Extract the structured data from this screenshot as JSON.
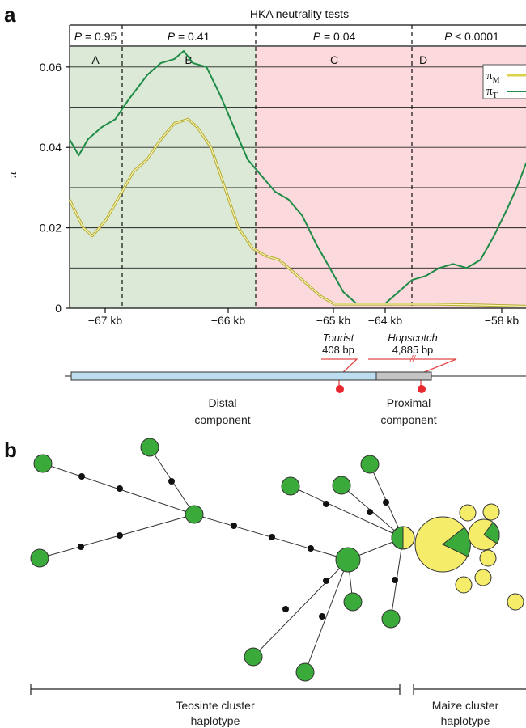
{
  "panel_a": {
    "letter": "a",
    "header_title": "HKA neutrality tests",
    "p_values": [
      {
        "label": "P = 0.95",
        "italic_part": "P",
        "rest": " = 0.95"
      },
      {
        "label": "P = 0.41",
        "italic_part": "P",
        "rest": " = 0.41"
      },
      {
        "label": "P = 0.04",
        "italic_part": "P",
        "rest": " = 0.04"
      },
      {
        "label": "P ≤ 0.0001",
        "italic_part": "P",
        "rest": " ≤ 0.0001"
      }
    ],
    "regions": [
      "A",
      "B",
      "C",
      "D"
    ],
    "region_colors": {
      "A": "#dbe9d6",
      "B": "#dbe9d6",
      "C": "#fbd9dc",
      "D": "#fbd9dc"
    },
    "legend": [
      {
        "symbol": "π",
        "sub": "M",
        "color": "#dcd24a"
      },
      {
        "symbol": "π",
        "sub": "T",
        "color": "#1e8c46"
      }
    ],
    "transposons": [
      {
        "name": "Tourist",
        "length": "408 bp"
      },
      {
        "name": "Hopscotch",
        "length": "4,885 bp"
      }
    ],
    "components": [
      {
        "line1": "Distal",
        "line2": "component"
      },
      {
        "line1": "Proximal",
        "line2": "component"
      }
    ]
  },
  "chart_data": {
    "type": "line",
    "title": "HKA neutrality tests",
    "xlabel": "",
    "ylabel": "π",
    "ylim": [
      0,
      0.065
    ],
    "y_ticks": [
      0,
      0.02,
      0.04,
      0.06
    ],
    "y_tick_labels": [
      "0",
      "0.02",
      "0.04",
      "0.06"
    ],
    "x_tick_labels": [
      "−67 kb",
      "−66 kb",
      "−65 kb",
      "−64 kb",
      "−58 kb"
    ],
    "grid": "horizontal",
    "region_boundaries_px_note": "",
    "series": [
      {
        "name": "πT",
        "color": "#1e8c46",
        "values": [
          [
            0.0,
            0.042
          ],
          [
            0.02,
            0.038
          ],
          [
            0.04,
            0.042
          ],
          [
            0.07,
            0.045
          ],
          [
            0.1,
            0.047
          ],
          [
            0.13,
            0.052
          ],
          [
            0.17,
            0.058
          ],
          [
            0.2,
            0.061
          ],
          [
            0.23,
            0.062
          ],
          [
            0.25,
            0.064
          ],
          [
            0.27,
            0.061
          ],
          [
            0.3,
            0.06
          ],
          [
            0.33,
            0.053
          ],
          [
            0.36,
            0.045
          ],
          [
            0.39,
            0.037
          ],
          [
            0.42,
            0.033
          ],
          [
            0.45,
            0.029
          ],
          [
            0.48,
            0.027
          ],
          [
            0.51,
            0.023
          ],
          [
            0.54,
            0.016
          ],
          [
            0.57,
            0.01
          ],
          [
            0.6,
            0.004
          ],
          [
            0.63,
            0.001
          ],
          [
            0.66,
            0.001
          ],
          [
            0.69,
            0.001
          ],
          [
            0.72,
            0.004
          ],
          [
            0.75,
            0.007
          ],
          [
            0.78,
            0.008
          ],
          [
            0.81,
            0.01
          ],
          [
            0.84,
            0.011
          ],
          [
            0.87,
            0.01
          ],
          [
            0.9,
            0.012
          ],
          [
            0.93,
            0.018
          ],
          [
            0.96,
            0.025
          ],
          [
            0.98,
            0.03
          ],
          [
            1.0,
            0.036
          ]
        ]
      },
      {
        "name": "πM",
        "color": "#dcd24a",
        "values": [
          [
            0.0,
            0.027
          ],
          [
            0.03,
            0.02
          ],
          [
            0.05,
            0.018
          ],
          [
            0.08,
            0.022
          ],
          [
            0.11,
            0.028
          ],
          [
            0.14,
            0.034
          ],
          [
            0.17,
            0.037
          ],
          [
            0.2,
            0.042
          ],
          [
            0.23,
            0.046
          ],
          [
            0.26,
            0.047
          ],
          [
            0.28,
            0.045
          ],
          [
            0.31,
            0.04
          ],
          [
            0.34,
            0.03
          ],
          [
            0.37,
            0.02
          ],
          [
            0.4,
            0.015
          ],
          [
            0.43,
            0.013
          ],
          [
            0.46,
            0.012
          ],
          [
            0.49,
            0.009
          ],
          [
            0.52,
            0.006
          ],
          [
            0.55,
            0.003
          ],
          [
            0.58,
            0.001
          ],
          [
            0.62,
            0.001
          ],
          [
            0.7,
            0.001
          ],
          [
            0.8,
            0.001
          ],
          [
            0.9,
            0.0008
          ],
          [
            1.0,
            0.0005
          ]
        ]
      }
    ]
  },
  "panel_b": {
    "letter": "b",
    "brackets": [
      {
        "line1": "Teosinte cluster",
        "line2": "haplotype"
      },
      {
        "line1": "Maize cluster",
        "line2": "haplotype"
      }
    ],
    "node_colors": {
      "teosinte": "#3aaa3a",
      "maize": "#f5ec6a",
      "stroke": "#333333",
      "median": "#111111"
    }
  }
}
